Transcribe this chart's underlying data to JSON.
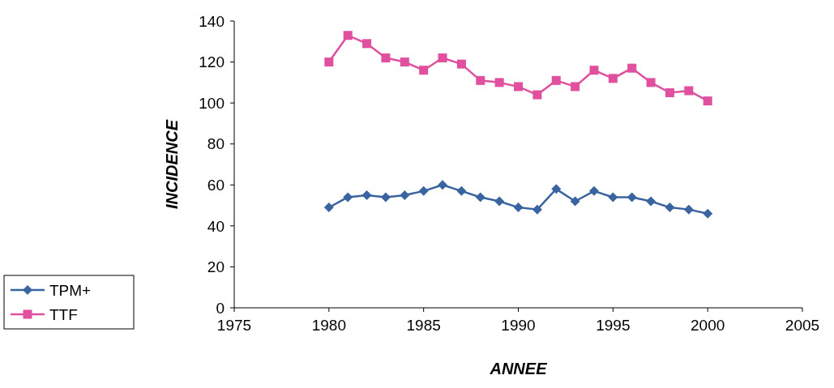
{
  "chart_data": {
    "type": "line",
    "xlabel": "ANNEE",
    "ylabel": "INCIDENCE",
    "x": [
      1980,
      1981,
      1982,
      1983,
      1984,
      1985,
      1986,
      1987,
      1988,
      1989,
      1990,
      1991,
      1992,
      1993,
      1994,
      1995,
      1996,
      1997,
      1998,
      1999,
      2000
    ],
    "series": [
      {
        "name": "TPM+",
        "color": "#3a64a0",
        "marker": "diamond",
        "values": [
          49,
          54,
          55,
          54,
          55,
          57,
          60,
          57,
          54,
          52,
          49,
          48,
          58,
          52,
          57,
          54,
          54,
          52,
          49,
          48,
          46
        ]
      },
      {
        "name": "TTF",
        "color": "#e0509e",
        "marker": "square",
        "values": [
          120,
          133,
          129,
          122,
          120,
          116,
          122,
          119,
          111,
          110,
          108,
          104,
          111,
          108,
          116,
          112,
          117,
          110,
          105,
          106,
          101
        ]
      }
    ],
    "xlim": [
      1975,
      2005
    ],
    "xticks": [
      1975,
      1980,
      1985,
      1990,
      1995,
      2000,
      2005
    ],
    "ylim": [
      0,
      140
    ],
    "yticks": [
      0,
      20,
      40,
      60,
      80,
      100,
      120,
      140
    ],
    "legend": "bottom left",
    "grid": false
  }
}
